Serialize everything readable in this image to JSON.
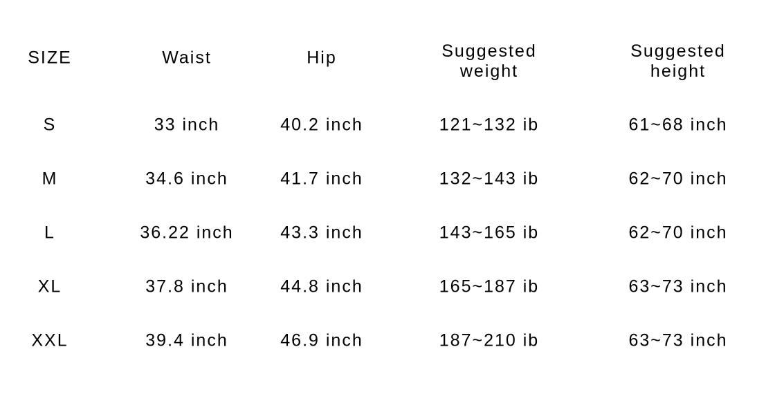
{
  "headers": [
    "SIZE",
    "Waist",
    "Hip",
    "Suggested\nweight",
    "Suggested\nheight"
  ],
  "header_lines": [
    [
      "SIZE"
    ],
    [
      "Waist"
    ],
    [
      "Hip"
    ],
    [
      "Suggested",
      "weight"
    ],
    [
      "Suggested",
      "height"
    ]
  ],
  "rows": [
    [
      "S",
      "33 inch",
      "40.2 inch",
      "121~132 ib",
      "61~68 inch"
    ],
    [
      "M",
      "34.6 inch",
      "41.7 inch",
      "132~143 ib",
      "62~70 inch"
    ],
    [
      "L",
      "36.22 inch",
      "43.3 inch",
      "143~165 ib",
      "62~70 inch"
    ],
    [
      "XL",
      "37.8 inch",
      "44.8 inch",
      "165~187 ib",
      "63~73 inch"
    ],
    [
      "XXL",
      "39.4 inch",
      "46.9 inch",
      "187~210 ib",
      "63~73 inch"
    ]
  ]
}
